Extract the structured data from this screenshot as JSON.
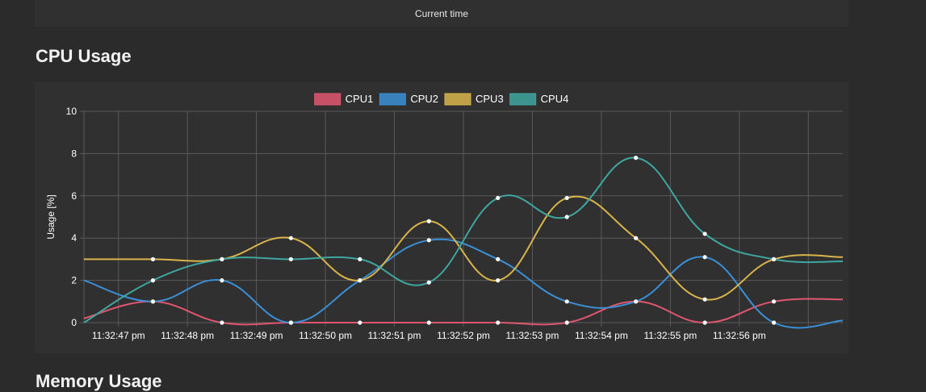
{
  "header": {
    "current_time_label": "Current time"
  },
  "sections": {
    "cpu_title": "CPU Usage",
    "memory_title": "Memory Usage"
  },
  "colors": {
    "background": "#2b2b2b",
    "panel": "#303030",
    "grid": "#5a5a5a",
    "text": "#ffffff"
  },
  "chart_data": {
    "type": "line",
    "title": "",
    "xlabel": "",
    "ylabel": "Usage [%]",
    "ylim": [
      0,
      10
    ],
    "yticks": [
      0,
      2,
      4,
      6,
      8,
      10
    ],
    "grid": true,
    "legend_position": "top",
    "x_tick_labels": [
      "11:32:47 pm",
      "11:32:48 pm",
      "11:32:49 pm",
      "11:32:50 pm",
      "11:32:51 pm",
      "11:32:52 pm",
      "11:32:53 pm",
      "11:32:54 pm",
      "11:32:55 pm",
      "11:32:56 pm"
    ],
    "series": [
      {
        "name": "CPU1",
        "color": "#e0566f",
        "values": [
          0.2,
          1.0,
          0.0,
          0.0,
          0.0,
          0.0,
          0.0,
          0.0,
          1.0,
          0.0,
          1.0,
          1.1
        ]
      },
      {
        "name": "CPU2",
        "color": "#3a8fd6",
        "values": [
          2.0,
          1.0,
          2.0,
          0.0,
          2.0,
          3.9,
          3.0,
          1.0,
          1.0,
          3.1,
          0.0,
          0.1
        ]
      },
      {
        "name": "CPU3",
        "color": "#d9b44a",
        "values": [
          3.0,
          3.0,
          3.0,
          4.0,
          2.0,
          4.8,
          2.0,
          5.9,
          4.0,
          1.1,
          3.0,
          3.1
        ]
      },
      {
        "name": "CPU4",
        "color": "#3fa6a0",
        "values": [
          0.0,
          2.0,
          3.0,
          3.0,
          3.0,
          1.9,
          5.9,
          5.0,
          7.8,
          4.2,
          3.0,
          2.9
        ]
      }
    ]
  }
}
